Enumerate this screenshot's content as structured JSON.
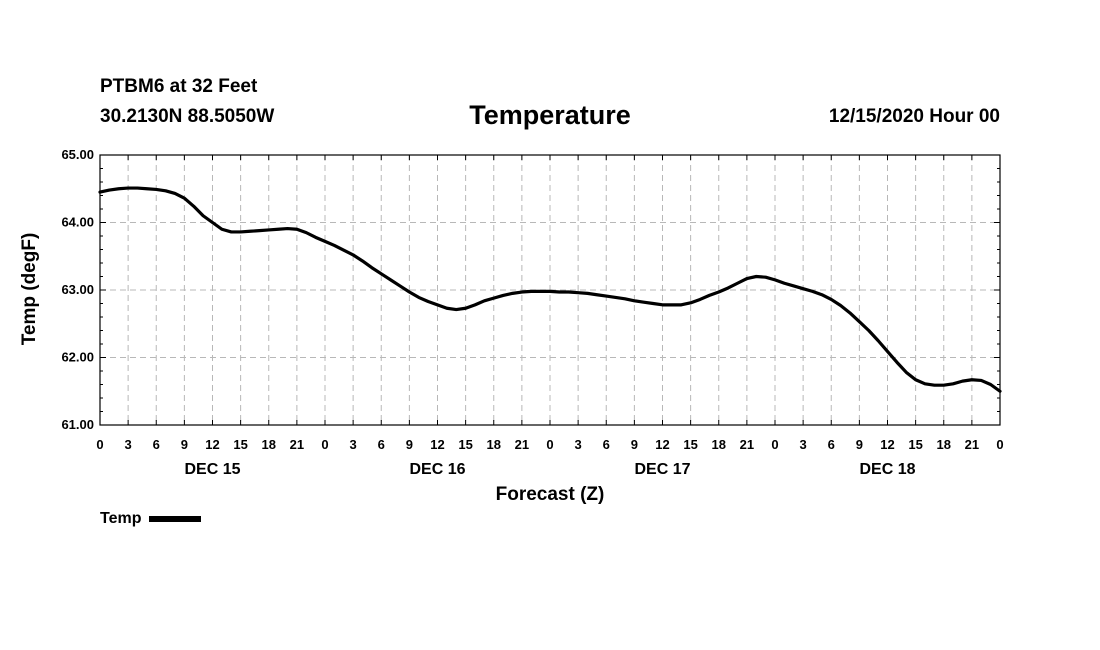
{
  "header": {
    "station": "PTBM6 at 32 Feet",
    "coords": "30.2130N 88.5050W",
    "run": "12/15/2020 Hour 00"
  },
  "chart_data": {
    "type": "line",
    "title": "Temperature",
    "xlabel": "Forecast (Z)",
    "ylabel": "Temp (degF)",
    "ylim": [
      61.0,
      65.0
    ],
    "yticks": [
      "61.00",
      "62.00",
      "63.00",
      "64.00",
      "65.00"
    ],
    "xlim_hours": [
      0,
      96
    ],
    "hour_tick_labels": [
      "0",
      "3",
      "6",
      "9",
      "12",
      "15",
      "18",
      "21",
      "0",
      "3",
      "6",
      "9",
      "12",
      "15",
      "18",
      "21",
      "0",
      "3",
      "6",
      "9",
      "12",
      "15",
      "18",
      "21",
      "0",
      "3",
      "6",
      "9",
      "12",
      "15",
      "18",
      "21",
      "0"
    ],
    "day_labels": [
      {
        "label": "DEC 15",
        "hour": 12
      },
      {
        "label": "DEC 16",
        "hour": 36
      },
      {
        "label": "DEC 17",
        "hour": 60
      },
      {
        "label": "DEC 18",
        "hour": 84
      }
    ],
    "grid": true,
    "series": [
      {
        "name": "Temp",
        "color": "#000000",
        "x": [
          0,
          1,
          2,
          3,
          4,
          5,
          6,
          7,
          8,
          9,
          10,
          11,
          12,
          13,
          14,
          15,
          16,
          17,
          18,
          19,
          20,
          21,
          22,
          23,
          24,
          25,
          26,
          27,
          28,
          29,
          30,
          31,
          32,
          33,
          34,
          35,
          36,
          37,
          38,
          39,
          40,
          41,
          42,
          43,
          44,
          45,
          46,
          47,
          48,
          49,
          50,
          51,
          52,
          53,
          54,
          55,
          56,
          57,
          58,
          59,
          60,
          61,
          62,
          63,
          64,
          65,
          66,
          67,
          68,
          69,
          70,
          71,
          72,
          73,
          74,
          75,
          76,
          77,
          78,
          79,
          80,
          81,
          82,
          83,
          84,
          85,
          86,
          87,
          88,
          89,
          90,
          91,
          92,
          93,
          94,
          95,
          96
        ],
        "values": [
          64.45,
          64.48,
          64.5,
          64.51,
          64.51,
          64.5,
          64.49,
          64.47,
          64.43,
          64.36,
          64.24,
          64.1,
          64.0,
          63.9,
          63.86,
          63.86,
          63.87,
          63.88,
          63.89,
          63.9,
          63.91,
          63.9,
          63.85,
          63.78,
          63.72,
          63.66,
          63.59,
          63.52,
          63.43,
          63.33,
          63.24,
          63.15,
          63.06,
          62.97,
          62.89,
          62.83,
          62.78,
          62.73,
          62.71,
          62.73,
          62.78,
          62.84,
          62.88,
          62.92,
          62.95,
          62.97,
          62.98,
          62.98,
          62.98,
          62.97,
          62.97,
          62.96,
          62.95,
          62.93,
          62.91,
          62.89,
          62.87,
          62.84,
          62.82,
          62.8,
          62.78,
          62.78,
          62.78,
          62.81,
          62.86,
          62.92,
          62.97,
          63.03,
          63.1,
          63.17,
          63.2,
          63.19,
          63.15,
          63.1,
          63.06,
          63.02,
          62.98,
          62.93,
          62.86,
          62.77,
          62.66,
          62.53,
          62.4,
          62.25,
          62.09,
          61.93,
          61.78,
          61.67,
          61.61,
          61.59,
          61.59,
          61.61,
          61.65,
          61.67,
          61.66,
          61.6,
          61.5
        ]
      }
    ]
  },
  "legend": {
    "label": "Temp"
  }
}
